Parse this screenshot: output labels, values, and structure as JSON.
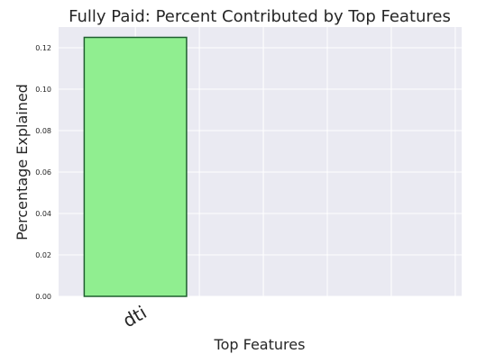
{
  "chart_data": {
    "type": "bar",
    "title": "Fully Paid: Percent Contributed by Top Features",
    "xlabel": "Top Features",
    "ylabel": "Percentage Explained",
    "categories": [
      "dti"
    ],
    "values": [
      0.125
    ],
    "ylim": [
      0,
      0.13
    ],
    "yticks": [
      0.0,
      0.02,
      0.04,
      0.06,
      0.08,
      0.1,
      0.12
    ],
    "grid": true,
    "colors": {
      "background": "#eaeaf2",
      "grid": "#ffffff",
      "bar_fill": "#90ee90",
      "bar_edge": "#1f5f2f"
    }
  }
}
